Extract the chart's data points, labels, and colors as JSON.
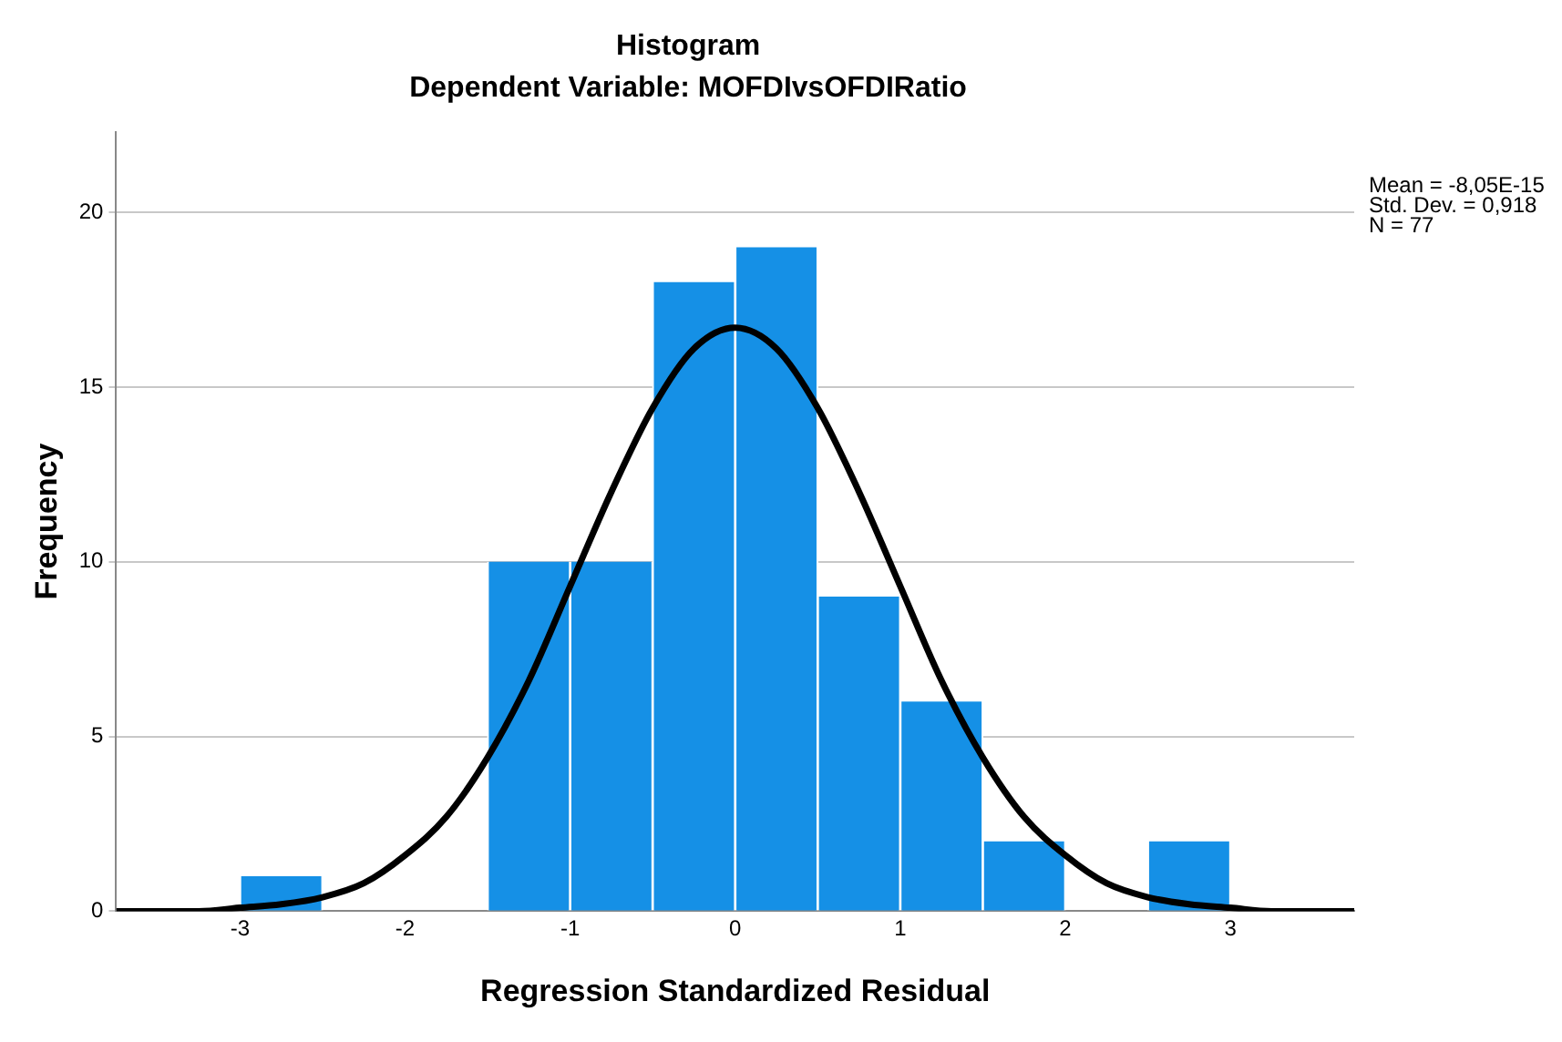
{
  "chart_data": {
    "type": "histogram",
    "title": "Histogram",
    "subtitle": "Dependent Variable: MOFDIvsOFDIRatio",
    "xlabel": "Regression Standardized Residual",
    "ylabel": "Frequency",
    "bins": [
      -3,
      -2.5,
      -2,
      -1.5,
      -1,
      -0.5,
      0,
      0.5,
      1,
      1.5,
      2,
      2.5,
      3
    ],
    "values": [
      1,
      0,
      0,
      10,
      10,
      18,
      19,
      9,
      6,
      2,
      0,
      2
    ],
    "color": "#1590e6",
    "series": [
      {
        "type": "line",
        "color": "#000000",
        "x": [
          -3.75,
          -3.5,
          -3.25,
          -3,
          -2.75,
          -2.5,
          -2.25,
          -2,
          -1.75,
          -1.5,
          -1.25,
          -1,
          -0.75,
          -0.5,
          -0.25,
          0,
          0.25,
          0.5,
          0.75,
          1,
          1.25,
          1.5,
          1.75,
          2,
          2.25,
          2.5,
          2.75,
          3,
          3.25,
          3.5,
          3.75
        ],
        "values": [
          0,
          0,
          0,
          0.1,
          0.2,
          0.4,
          0.8,
          1.6,
          2.7,
          4.4,
          6.6,
          9.3,
          12,
          14.4,
          16.1,
          16.7,
          16.1,
          14.4,
          12,
          9.3,
          6.6,
          4.4,
          2.7,
          1.6,
          0.8,
          0.4,
          0.2,
          0.1,
          0,
          0,
          0
        ]
      }
    ],
    "xlim": [
      -3.75,
      3.75
    ],
    "ylim": [
      0,
      22.3
    ],
    "xticks": [
      -3,
      -2,
      -1,
      0,
      1,
      2,
      3
    ],
    "yticks": [
      0,
      5,
      10,
      15,
      20
    ],
    "grid": "y",
    "legend": false,
    "marker": "none",
    "line_style": "solid",
    "annotations": [
      "Mean = -8,05E-15",
      "Std. Dev. = 0,918",
      "N = 77"
    ]
  }
}
